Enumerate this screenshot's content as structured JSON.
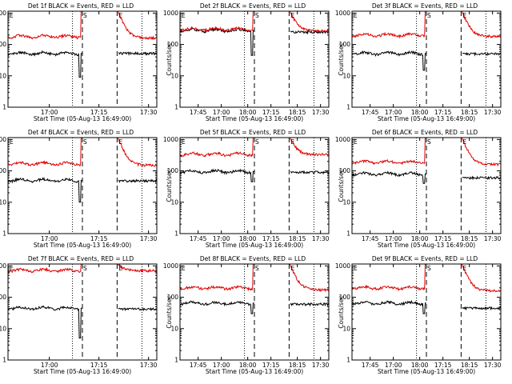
{
  "figure": {
    "title_prefix": "Det ",
    "title_suffix": "f BLACK = Events, RED = LLD",
    "xlabel": "Start Time (05-Aug-13 16:49:00)",
    "ylabel": "Counts/sec",
    "y_tick_labels": [
      "1",
      "10",
      "100",
      "1000"
    ],
    "x_tick_labels": [
      "17:00",
      "17:15",
      "17:30",
      "17:45",
      "18:00",
      "18:15"
    ],
    "colors": {
      "events": "#000000",
      "lld": "#e00000"
    }
  },
  "chart_data": [
    {
      "type": "line",
      "detector": 1,
      "title": "Det 1f BLACK = Events, RED = LLD",
      "xlabel": "Start Time (05-Aug-13 16:49:00)",
      "ylabel": "Counts/sec",
      "xlim_minutes_from_start": [
        -2,
        43
      ],
      "ylim": [
        1,
        1000
      ],
      "yscale": "log",
      "dotted_lines": [
        17.5,
        38.5
      ],
      "dashed_lines": [
        20.5,
        31.0
      ],
      "markers": {
        "S": 20.5,
        "E": 31.0
      },
      "series": [
        {
          "name": "Events",
          "color": "#000000",
          "baseline_before": 52,
          "baseline_after": 52,
          "dip_min": 9
        },
        {
          "name": "LLD",
          "color": "#e00000",
          "baseline_before": 180,
          "baseline_after": 160,
          "peak": 1200
        }
      ]
    },
    {
      "type": "line",
      "detector": 2,
      "title": "Det 2f BLACK = Events, RED = LLD",
      "xlabel": "Start Time (05-Aug-13 16:49:00)",
      "ylabel": "Counts/sec",
      "xlim_minutes_from_start": [
        -2,
        43
      ],
      "ylim": [
        1,
        1000
      ],
      "yscale": "log",
      "dotted_lines": [
        17.5,
        38.5
      ],
      "dashed_lines": [
        20.5,
        31.0
      ],
      "markers": {
        "S": 20.5,
        "E": 31.0
      },
      "series": [
        {
          "name": "Events",
          "color": "#000000",
          "baseline_before": 280,
          "baseline_after": 250,
          "dip_min": 45
        },
        {
          "name": "LLD",
          "color": "#e00000",
          "baseline_before": 310,
          "baseline_after": 270,
          "peak": 1200
        }
      ]
    },
    {
      "type": "line",
      "detector": 3,
      "title": "Det 3f BLACK = Events, RED = LLD",
      "xlabel": "Start Time (05-Aug-13 16:49:00)",
      "ylabel": "Counts/sec",
      "xlim_minutes_from_start": [
        -2,
        43
      ],
      "ylim": [
        1,
        1000
      ],
      "yscale": "log",
      "dotted_lines": [
        17.5,
        38.5
      ],
      "dashed_lines": [
        20.5,
        31.0
      ],
      "markers": {
        "S": 20.5,
        "E": 31.0
      },
      "series": [
        {
          "name": "Events",
          "color": "#000000",
          "baseline_before": 52,
          "baseline_after": 50,
          "dip_min": 15
        },
        {
          "name": "LLD",
          "color": "#e00000",
          "baseline_before": 200,
          "baseline_after": 180,
          "peak": 1200
        }
      ]
    },
    {
      "type": "line",
      "detector": 4,
      "title": "Det 4f BLACK = Events, RED = LLD",
      "xlabel": "Start Time (05-Aug-13 16:49:00)",
      "ylabel": "Counts/sec",
      "xlim_minutes_from_start": [
        -2,
        43
      ],
      "ylim": [
        1,
        1000
      ],
      "yscale": "log",
      "dotted_lines": [
        17.5,
        38.5
      ],
      "dashed_lines": [
        20.5,
        31.0
      ],
      "markers": {
        "S": 20.5,
        "E": 31.0
      },
      "series": [
        {
          "name": "Events",
          "color": "#000000",
          "baseline_before": 50,
          "baseline_after": 48,
          "dip_min": 10
        },
        {
          "name": "LLD",
          "color": "#e00000",
          "baseline_before": 170,
          "baseline_after": 150,
          "peak": 1200
        }
      ]
    },
    {
      "type": "line",
      "detector": 5,
      "title": "Det 5f BLACK = Events, RED = LLD",
      "xlabel": "Start Time (05-Aug-13 16:49:00)",
      "ylabel": "Counts/sec",
      "xlim_minutes_from_start": [
        -2,
        43
      ],
      "ylim": [
        1,
        1000
      ],
      "yscale": "log",
      "dotted_lines": [
        17.5,
        38.5
      ],
      "dashed_lines": [
        20.5,
        31.0
      ],
      "markers": {
        "S": 20.5,
        "E": 31.0
      },
      "series": [
        {
          "name": "Events",
          "color": "#000000",
          "baseline_before": 95,
          "baseline_after": 90,
          "dip_min": 45
        },
        {
          "name": "LLD",
          "color": "#e00000",
          "baseline_before": 340,
          "baseline_after": 330,
          "peak": 1200
        }
      ]
    },
    {
      "type": "line",
      "detector": 6,
      "title": "Det 6f BLACK = Events, RED = LLD",
      "xlabel": "Start Time (05-Aug-13 16:49:00)",
      "ylabel": "Counts/sec",
      "xlim_minutes_from_start": [
        -2,
        43
      ],
      "ylim": [
        1,
        1000
      ],
      "yscale": "log",
      "dotted_lines": [
        17.5,
        38.5
      ],
      "dashed_lines": [
        20.5,
        31.0
      ],
      "markers": {
        "S": 20.5,
        "E": 31.0
      },
      "series": [
        {
          "name": "Events",
          "color": "#000000",
          "baseline_before": 80,
          "baseline_after": 60,
          "dip_min": 40
        },
        {
          "name": "LLD",
          "color": "#e00000",
          "baseline_before": 190,
          "baseline_after": 160,
          "peak": 1200
        }
      ]
    },
    {
      "type": "line",
      "detector": 7,
      "title": "Det 7f BLACK = Events, RED = LLD",
      "xlabel": "Start Time (05-Aug-13 16:49:00)",
      "ylabel": "Counts/sec",
      "xlim_minutes_from_start": [
        -2,
        43
      ],
      "ylim": [
        1,
        1000
      ],
      "yscale": "log",
      "dotted_lines": [
        17.5,
        38.5
      ],
      "dashed_lines": [
        20.5,
        31.0
      ],
      "markers": {
        "S": 20.5,
        "E": 31.0
      },
      "series": [
        {
          "name": "Events",
          "color": "#000000",
          "baseline_before": 45,
          "baseline_after": 42,
          "dip_min": 5
        },
        {
          "name": "LLD",
          "color": "#e00000",
          "baseline_before": 720,
          "baseline_after": 700,
          "peak": 1200
        }
      ]
    },
    {
      "type": "line",
      "detector": 8,
      "title": "Det 8f BLACK = Events, RED = LLD",
      "xlabel": "Start Time (05-Aug-13 16:49:00)",
      "ylabel": "Counts/sec",
      "xlim_minutes_from_start": [
        -2,
        43
      ],
      "ylim": [
        1,
        1000
      ],
      "yscale": "log",
      "dotted_lines": [
        17.5,
        38.5
      ],
      "dashed_lines": [
        20.5,
        31.0
      ],
      "markers": {
        "S": 20.5,
        "E": 31.0
      },
      "series": [
        {
          "name": "Events",
          "color": "#000000",
          "baseline_before": 65,
          "baseline_after": 60,
          "dip_min": 30
        },
        {
          "name": "LLD",
          "color": "#e00000",
          "baseline_before": 200,
          "baseline_after": 170,
          "peak": 1200
        }
      ]
    },
    {
      "type": "line",
      "detector": 9,
      "title": "Det 9f BLACK = Events, RED = LLD",
      "xlabel": "Start Time (05-Aug-13 16:49:00)",
      "ylabel": "Counts/sec",
      "xlim_minutes_from_start": [
        -2,
        43
      ],
      "ylim": [
        1,
        1000
      ],
      "yscale": "log",
      "dotted_lines": [
        17.5,
        38.5
      ],
      "dashed_lines": [
        20.5,
        31.0
      ],
      "markers": {
        "S": 20.5,
        "E": 31.0
      },
      "series": [
        {
          "name": "Events",
          "color": "#000000",
          "baseline_before": 65,
          "baseline_after": 45,
          "dip_min": 30
        },
        {
          "name": "LLD",
          "color": "#e00000",
          "baseline_before": 200,
          "baseline_after": 160,
          "peak": 1200
        }
      ]
    }
  ]
}
